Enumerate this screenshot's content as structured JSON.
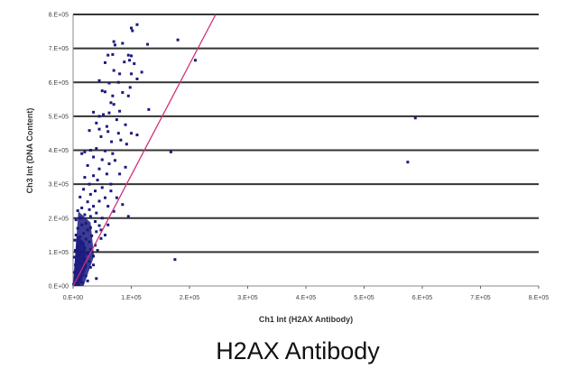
{
  "chart_data": {
    "type": "scatter",
    "title": "",
    "caption": "H2AX Antibody",
    "xlabel": "Ch1 Int (H2AX Antibody)",
    "ylabel": "Ch3 Int (DNA Content)",
    "xlim": [
      0,
      800000
    ],
    "ylim": [
      0,
      800000
    ],
    "xticks": [
      "0.E+00",
      "1.E+05",
      "2.E+05",
      "3.E+05",
      "4.E+05",
      "5.E+05",
      "6.E+05",
      "7.E+05",
      "8.E+05"
    ],
    "yticks": [
      "0.E+00",
      "1.E+05",
      "2.E+05",
      "3.E+05",
      "4.E+05",
      "5.E+05",
      "6.E+05",
      "7.E+05",
      "8.E+05"
    ],
    "grid": "horizontal",
    "legend": "none",
    "marker_color": "#1a1a80",
    "reference_line": {
      "color": "#d0307a",
      "points": [
        [
          0,
          0
        ],
        [
          245000,
          800000
        ]
      ]
    },
    "points": [
      [
        575000,
        365000
      ],
      [
        588000,
        495000
      ],
      [
        175000,
        78000
      ],
      [
        210000,
        665000
      ],
      [
        180000,
        725000
      ],
      [
        168000,
        395000
      ],
      [
        130000,
        520000
      ],
      [
        128000,
        712000
      ],
      [
        110000,
        770000
      ],
      [
        100000,
        760000
      ],
      [
        102000,
        752000
      ],
      [
        95000,
        205000
      ],
      [
        40000,
        22000
      ],
      [
        85000,
        715000
      ],
      [
        70000,
        720000
      ],
      [
        72000,
        710000
      ],
      [
        60000,
        680000
      ],
      [
        68000,
        682000
      ],
      [
        95000,
        680000
      ],
      [
        100000,
        678000
      ],
      [
        88000,
        660000
      ],
      [
        55000,
        658000
      ],
      [
        97000,
        665000
      ],
      [
        105000,
        655000
      ],
      [
        118000,
        630000
      ],
      [
        100000,
        625000
      ],
      [
        110000,
        610000
      ],
      [
        80000,
        625000
      ],
      [
        70000,
        635000
      ],
      [
        78000,
        600000
      ],
      [
        45000,
        605000
      ],
      [
        62000,
        598000
      ],
      [
        98000,
        585000
      ],
      [
        85000,
        570000
      ],
      [
        50000,
        575000
      ],
      [
        55000,
        572000
      ],
      [
        68000,
        560000
      ],
      [
        95000,
        560000
      ],
      [
        65000,
        540000
      ],
      [
        70000,
        535000
      ],
      [
        80000,
        515000
      ],
      [
        35000,
        512000
      ],
      [
        45000,
        500000
      ],
      [
        52000,
        505000
      ],
      [
        62000,
        510000
      ],
      [
        75000,
        490000
      ],
      [
        40000,
        480000
      ],
      [
        58000,
        470000
      ],
      [
        90000,
        475000
      ],
      [
        110000,
        445000
      ],
      [
        45000,
        462000
      ],
      [
        60000,
        455000
      ],
      [
        78000,
        450000
      ],
      [
        28000,
        458000
      ],
      [
        100000,
        450000
      ],
      [
        82000,
        430000
      ],
      [
        66000,
        425000
      ],
      [
        92000,
        418000
      ],
      [
        48000,
        440000
      ],
      [
        30000,
        400000
      ],
      [
        40000,
        405000
      ],
      [
        55000,
        398000
      ],
      [
        20000,
        395000
      ],
      [
        68000,
        390000
      ],
      [
        15000,
        390000
      ],
      [
        35000,
        380000
      ],
      [
        50000,
        372000
      ],
      [
        62000,
        360000
      ],
      [
        25000,
        355000
      ],
      [
        45000,
        345000
      ],
      [
        58000,
        330000
      ],
      [
        35000,
        325000
      ],
      [
        20000,
        320000
      ],
      [
        42000,
        312000
      ],
      [
        28000,
        300000
      ],
      [
        65000,
        300000
      ],
      [
        50000,
        290000
      ],
      [
        18000,
        285000
      ],
      [
        38000,
        280000
      ],
      [
        30000,
        270000
      ],
      [
        55000,
        260000
      ],
      [
        12000,
        262000
      ],
      [
        45000,
        250000
      ],
      [
        25000,
        248000
      ],
      [
        60000,
        235000
      ],
      [
        85000,
        240000
      ],
      [
        35000,
        235000
      ],
      [
        15000,
        230000
      ],
      [
        70000,
        220000
      ],
      [
        28000,
        225000
      ],
      [
        8000,
        222000
      ],
      [
        40000,
        215000
      ],
      [
        20000,
        210000
      ],
      [
        50000,
        200000
      ],
      [
        30000,
        205000
      ],
      [
        12000,
        200000
      ],
      [
        5000,
        195000
      ],
      [
        38000,
        190000
      ],
      [
        22000,
        185000
      ],
      [
        45000,
        178000
      ],
      [
        15000,
        180000
      ],
      [
        30000,
        172000
      ],
      [
        8000,
        170000
      ],
      [
        25000,
        165000
      ],
      [
        40000,
        160000
      ],
      [
        18000,
        155000
      ],
      [
        5000,
        150000
      ],
      [
        32000,
        148000
      ],
      [
        12000,
        145000
      ],
      [
        48000,
        140000
      ],
      [
        22000,
        138000
      ],
      [
        3000,
        135000
      ],
      [
        28000,
        130000
      ],
      [
        15000,
        125000
      ],
      [
        38000,
        120000
      ],
      [
        8000,
        118000
      ],
      [
        20000,
        112000
      ],
      [
        30000,
        108000
      ],
      [
        4000,
        105000
      ],
      [
        14000,
        100000
      ],
      [
        25000,
        95000
      ],
      [
        10000,
        90000
      ],
      [
        35000,
        88000
      ],
      [
        2000,
        85000
      ],
      [
        18000,
        80000
      ],
      [
        8000,
        75000
      ],
      [
        28000,
        72000
      ],
      [
        12000,
        68000
      ],
      [
        4000,
        62000
      ],
      [
        20000,
        58000
      ],
      [
        30000,
        55000
      ],
      [
        6000,
        50000
      ],
      [
        15000,
        45000
      ],
      [
        2000,
        40000
      ],
      [
        10000,
        35000
      ],
      [
        22000,
        30000
      ],
      [
        5000,
        25000
      ],
      [
        12000,
        18000
      ],
      [
        3000,
        12000
      ],
      [
        8000,
        8000
      ],
      [
        1000,
        5000
      ],
      [
        16000,
        10000
      ],
      [
        25000,
        15000
      ],
      [
        35000,
        62000
      ],
      [
        42000,
        105000
      ],
      [
        55000,
        150000
      ],
      [
        60000,
        180000
      ],
      [
        48000,
        165000
      ],
      [
        75000,
        260000
      ],
      [
        80000,
        330000
      ],
      [
        65000,
        280000
      ],
      [
        90000,
        350000
      ],
      [
        72000,
        370000
      ]
    ]
  }
}
